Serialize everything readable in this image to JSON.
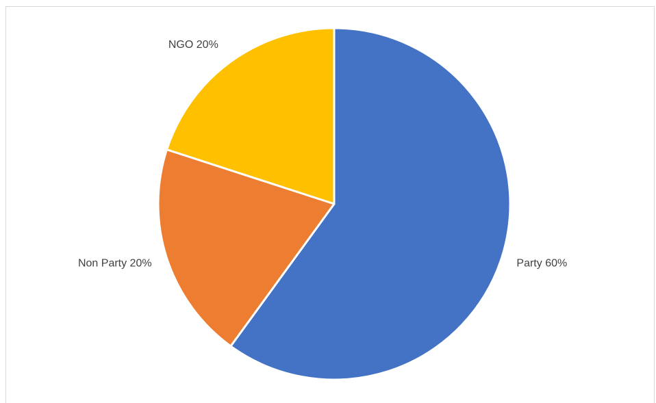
{
  "chart_data": {
    "type": "pie",
    "title": "",
    "slices": [
      {
        "label": "Party 60%",
        "name": "Party",
        "value": 60,
        "color": "#4472C4"
      },
      {
        "label": "Non Party 20%",
        "name": "Non Party",
        "value": 20,
        "color": "#ED7D31"
      },
      {
        "label": "NGO 20%",
        "name": "NGO",
        "value": 20,
        "color": "#FFC000"
      }
    ],
    "start_angle_deg": 0,
    "direction": "clockwise",
    "legend": "none",
    "label_position": "outside"
  }
}
